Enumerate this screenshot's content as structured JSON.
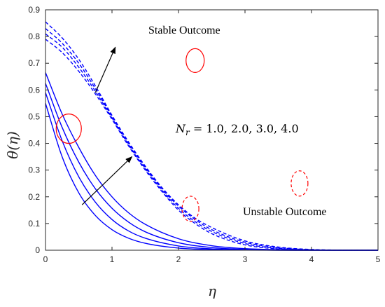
{
  "chart_data": {
    "type": "line",
    "xlabel": "η",
    "ylabel": "θ(η)",
    "xlim": [
      0,
      5
    ],
    "ylim": [
      0,
      0.9
    ],
    "x_ticks": [
      "0",
      "1",
      "2",
      "3",
      "4",
      "5"
    ],
    "y_ticks": [
      "0",
      "0.1",
      "0.2",
      "0.3",
      "0.4",
      "0.5",
      "0.6",
      "0.7",
      "0.8",
      "0.9"
    ],
    "grid": false,
    "line_color": "#0000ff",
    "marker_color": "#ff0000",
    "series": [
      {
        "style": "solid",
        "x": [
          0,
          0.25,
          0.5,
          0.75,
          1.0,
          1.25,
          1.5,
          2.0,
          2.5,
          3.0,
          4.0,
          5.0
        ],
        "y": [
          0.55,
          0.35,
          0.215,
          0.13,
          0.077,
          0.045,
          0.026,
          0.008,
          0.002,
          0.0005,
          0.0,
          0.0
        ]
      },
      {
        "style": "solid",
        "x": [
          0,
          0.25,
          0.5,
          0.75,
          1.0,
          1.25,
          1.5,
          2.0,
          2.5,
          3.0,
          4.0,
          5.0
        ],
        "y": [
          0.59,
          0.41,
          0.275,
          0.18,
          0.115,
          0.072,
          0.045,
          0.016,
          0.005,
          0.0015,
          0.0,
          0.0
        ]
      },
      {
        "style": "solid",
        "x": [
          0,
          0.25,
          0.5,
          0.75,
          1.0,
          1.25,
          1.5,
          2.0,
          2.5,
          3.0,
          4.0,
          5.0
        ],
        "y": [
          0.625,
          0.46,
          0.33,
          0.23,
          0.157,
          0.105,
          0.069,
          0.028,
          0.01,
          0.003,
          0.0,
          0.0
        ]
      },
      {
        "style": "solid",
        "x": [
          0,
          0.25,
          0.5,
          0.75,
          1.0,
          1.25,
          1.5,
          2.0,
          2.5,
          3.0,
          4.0,
          5.0
        ],
        "y": [
          0.665,
          0.51,
          0.385,
          0.28,
          0.2,
          0.14,
          0.097,
          0.043,
          0.017,
          0.006,
          0.0005,
          0.0
        ]
      },
      {
        "style": "dashed",
        "x": [
          0,
          0.25,
          0.5,
          0.75,
          1.0,
          1.25,
          1.5,
          1.75,
          2.0,
          2.25,
          2.5,
          3.0,
          3.5,
          4.0,
          5.0
        ],
        "y": [
          0.79,
          0.74,
          0.67,
          0.585,
          0.49,
          0.39,
          0.3,
          0.22,
          0.15,
          0.1,
          0.062,
          0.02,
          0.005,
          0.001,
          0.0
        ]
      },
      {
        "style": "dashed",
        "x": [
          0,
          0.25,
          0.5,
          0.75,
          1.0,
          1.25,
          1.5,
          1.75,
          2.0,
          2.25,
          2.5,
          3.0,
          3.5,
          4.0,
          5.0
        ],
        "y": [
          0.81,
          0.76,
          0.685,
          0.595,
          0.495,
          0.395,
          0.305,
          0.225,
          0.157,
          0.107,
          0.07,
          0.025,
          0.007,
          0.0015,
          0.0
        ]
      },
      {
        "style": "dashed",
        "x": [
          0,
          0.25,
          0.5,
          0.75,
          1.0,
          1.25,
          1.5,
          1.75,
          2.0,
          2.25,
          2.5,
          3.0,
          3.5,
          4.0,
          5.0
        ],
        "y": [
          0.83,
          0.775,
          0.7,
          0.605,
          0.5,
          0.4,
          0.31,
          0.23,
          0.165,
          0.115,
          0.077,
          0.03,
          0.01,
          0.002,
          0.0
        ]
      },
      {
        "style": "dashed",
        "x": [
          0,
          0.25,
          0.5,
          0.75,
          1.0,
          1.25,
          1.5,
          1.75,
          2.0,
          2.25,
          2.5,
          3.0,
          3.5,
          4.0,
          5.0
        ],
        "y": [
          0.855,
          0.795,
          0.715,
          0.615,
          0.505,
          0.405,
          0.315,
          0.235,
          0.17,
          0.12,
          0.085,
          0.035,
          0.012,
          0.003,
          0.0
        ]
      }
    ],
    "annotations": {
      "stable": "Stable Outcome",
      "unstable": "Unstable Outcome",
      "parameter": "N_r = 1.0, 2.0, 3.0, 4.0",
      "param_symbol": "N",
      "param_subscript": "r",
      "param_values": " = 1.0, 2.0, 3.0, 4.0"
    },
    "markers": [
      {
        "kind": "ellipse-solid",
        "x": 0.35,
        "y": 0.455
      },
      {
        "kind": "ellipse-solid",
        "x": 2.25,
        "y": 0.71
      },
      {
        "kind": "ellipse-dashed",
        "x": 2.18,
        "y": 0.155
      },
      {
        "kind": "ellipse-dashed",
        "x": 3.82,
        "y": 0.25
      }
    ],
    "arrows": [
      {
        "from": [
          0.75,
          0.59
        ],
        "to": [
          1.05,
          0.76
        ]
      },
      {
        "from": [
          0.55,
          0.17
        ],
        "to": [
          1.3,
          0.35
        ]
      }
    ]
  }
}
